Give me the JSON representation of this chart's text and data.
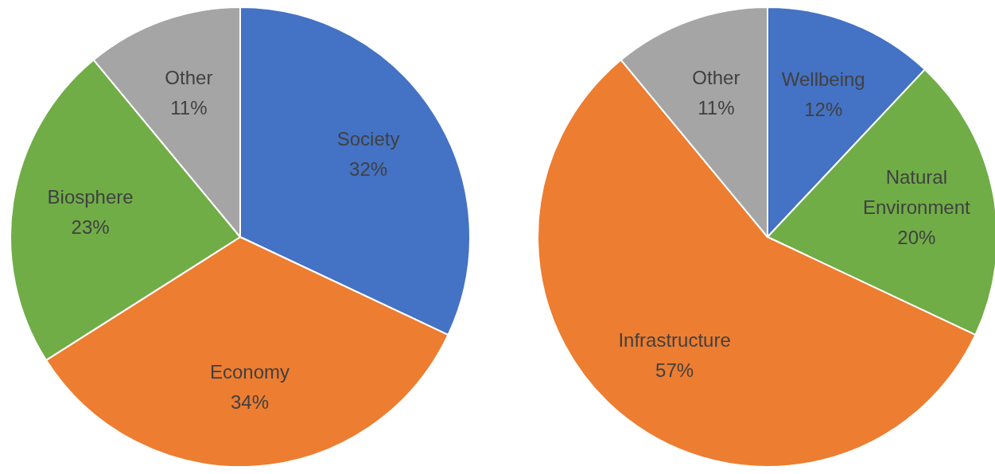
{
  "chart_data": [
    {
      "type": "pie",
      "categories": [
        "Society",
        "Economy",
        "Biosphere",
        "Other"
      ],
      "values": [
        32,
        34,
        23,
        11
      ],
      "colors": [
        "#4472c4",
        "#ed7d31",
        "#70ad47",
        "#a5a5a5"
      ],
      "value_labels": [
        "32%",
        "34%",
        "23%",
        "11%"
      ],
      "legend": false
    },
    {
      "type": "pie",
      "categories": [
        "Wellbeing",
        "Natural Environment",
        "Infrastructure",
        "Other"
      ],
      "values": [
        12,
        20,
        57,
        11
      ],
      "colors": [
        "#4472c4",
        "#70ad47",
        "#ed7d31",
        "#a5a5a5"
      ],
      "value_labels": [
        "12%",
        "20%",
        "57%",
        "11%"
      ],
      "legend": false
    }
  ]
}
